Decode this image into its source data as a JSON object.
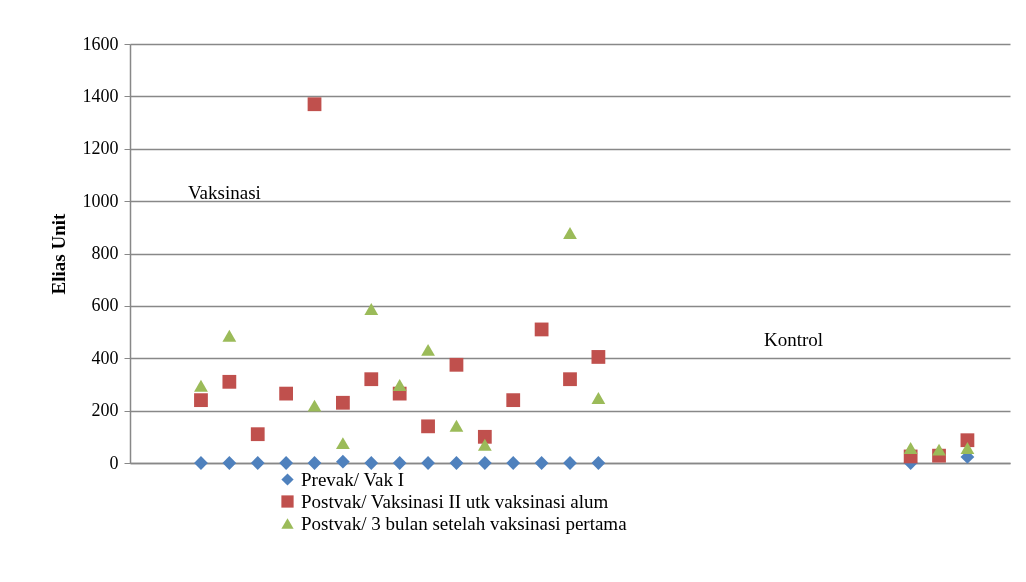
{
  "chart_data": {
    "type": "scatter",
    "ylabel": "Elias Unit",
    "categories": [
      null,
      null,
      null,
      null,
      null,
      null,
      null,
      null,
      null,
      null,
      null,
      null,
      null,
      null,
      null,
      null,
      null,
      null,
      null,
      null,
      null,
      null,
      null,
      null,
      null,
      null,
      null,
      null,
      null,
      null,
      null
    ],
    "series": [
      {
        "name": "Prevak/ Vak I",
        "color": "#4f81bd",
        "marker": "diamond",
        "values": [
          null,
          null,
          0,
          0,
          0,
          0,
          0,
          5,
          0,
          0,
          0,
          0,
          0,
          0,
          0,
          0,
          0,
          null,
          null,
          null,
          null,
          null,
          null,
          null,
          null,
          null,
          null,
          0,
          null,
          23,
          null
        ]
      },
      {
        "name": "Postvak/ Vaksinasi II utk vaksinasi alum",
        "color": "#c0504d",
        "marker": "square",
        "values": [
          null,
          null,
          240,
          310,
          110,
          265,
          1370,
          230,
          320,
          265,
          140,
          375,
          100,
          240,
          510,
          320,
          405,
          null,
          null,
          null,
          null,
          null,
          null,
          null,
          null,
          null,
          null,
          25,
          28,
          87,
          null
        ]
      },
      {
        "name": "Postvak/ 3 bulan setelah vaksinasi pertama",
        "color": "#9bbb59",
        "marker": "triangle",
        "values": [
          null,
          null,
          295,
          486,
          null,
          null,
          219,
          76,
          588,
          298,
          432,
          142,
          70,
          null,
          null,
          878,
          248,
          null,
          null,
          null,
          null,
          null,
          null,
          null,
          null,
          null,
          null,
          57,
          51,
          57,
          null
        ]
      }
    ],
    "ylim": [
      0,
      1600
    ],
    "yticks": [
      0,
      200,
      400,
      600,
      800,
      {
        "value": 1000,
        "label": "1000"
      },
      {
        "value": 1200,
        "label": "1200"
      },
      {
        "value": 1400,
        "label": "1400"
      },
      {
        "value": 1600,
        "label": "1600"
      }
    ],
    "grid": "y",
    "legend": "bottom",
    "annotations": [
      "Vaksinasi",
      "Kontrol"
    ]
  }
}
